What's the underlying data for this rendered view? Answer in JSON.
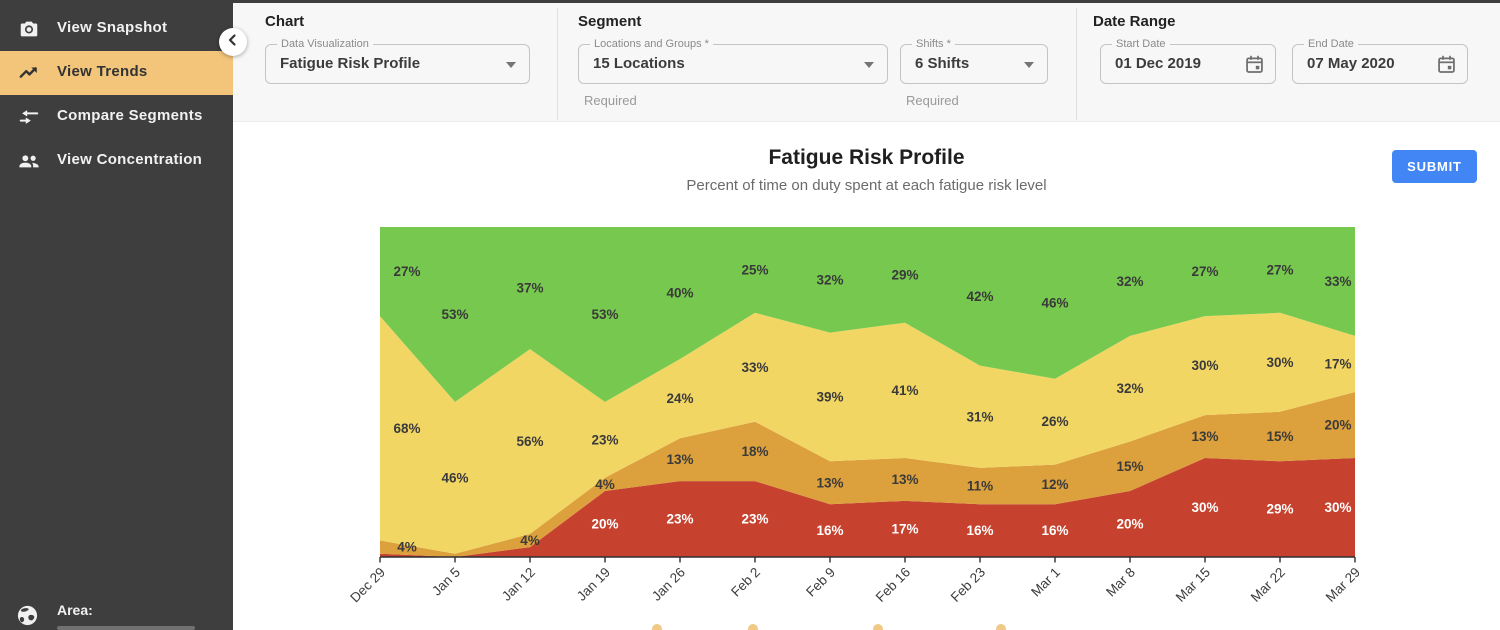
{
  "sidebar": {
    "items": [
      {
        "label": "View Snapshot",
        "icon": "camera-icon",
        "active": false
      },
      {
        "label": "View Trends",
        "icon": "trending-up-icon",
        "active": true
      },
      {
        "label": "Compare Segments",
        "icon": "compare-arrows-icon",
        "active": false
      },
      {
        "label": "View Concentration",
        "icon": "people-icon",
        "active": false
      }
    ],
    "footer_label": "Area:",
    "active_bg": "#F2C57B",
    "bg": "#3E3E3E"
  },
  "toolbar": {
    "chart_section": {
      "heading": "Chart",
      "field": {
        "label": "Data Visualization",
        "value": "Fatigue Risk Profile"
      }
    },
    "segment_section": {
      "heading": "Segment",
      "fields": [
        {
          "label": "Locations and Groups *",
          "value": "15 Locations",
          "helper": "Required"
        },
        {
          "label": "Shifts *",
          "value": "6 Shifts",
          "helper": "Required"
        }
      ]
    },
    "date_section": {
      "heading": "Date Range",
      "fields": [
        {
          "label": "Start Date",
          "value": "01 Dec 2019"
        },
        {
          "label": "End Date",
          "value": "07 May 2020"
        }
      ]
    }
  },
  "main": {
    "title": "Fatigue Risk Profile",
    "subtitle": "Percent of time on duty spent at each fatigue risk level",
    "submit_label": "SUBMIT",
    "submit_color": "#4285F4"
  },
  "chart_data": {
    "type": "area",
    "stacked": true,
    "title": "Fatigue Risk Profile",
    "subtitle": "Percent of time on duty spent at each fatigue risk level",
    "ylim": [
      0,
      100
    ],
    "grid": false,
    "legend_position": "none",
    "x": [
      "Dec 29",
      "Jan 5",
      "Jan 12",
      "Jan 19",
      "Jan 26",
      "Feb 2",
      "Feb 9",
      "Feb 16",
      "Feb 23",
      "Mar 1",
      "Mar 8",
      "Mar 15",
      "Mar 22",
      "Mar 29"
    ],
    "series": [
      {
        "name": "very-high-risk",
        "color": "#C6422F",
        "label_color": "#FFFFFF",
        "values": [
          1,
          0,
          3,
          20,
          23,
          23,
          16,
          17,
          16,
          16,
          20,
          30,
          29,
          30
        ],
        "labels": [
          null,
          null,
          null,
          "20%",
          "23%",
          "23%",
          "16%",
          "17%",
          "16%",
          "16%",
          "20%",
          "30%",
          "29%",
          "30%"
        ]
      },
      {
        "name": "high-risk",
        "color": "#DCA03C",
        "label_color": "#3A3A3A",
        "values": [
          4,
          1,
          4,
          4,
          13,
          18,
          13,
          13,
          11,
          12,
          15,
          13,
          15,
          20
        ],
        "labels": [
          "4%",
          null,
          "4%",
          "4%",
          "13%",
          "18%",
          "13%",
          "13%",
          "11%",
          "12%",
          "15%",
          "13%",
          "15%",
          "20%"
        ]
      },
      {
        "name": "moderate-risk",
        "color": "#F2D664",
        "label_color": "#3A3A3A",
        "values": [
          68,
          46,
          56,
          23,
          24,
          33,
          39,
          41,
          31,
          26,
          32,
          30,
          30,
          17
        ],
        "labels": [
          "68%",
          "46%",
          "56%",
          "23%",
          "24%",
          "33%",
          "39%",
          "41%",
          "31%",
          "26%",
          "32%",
          "30%",
          "30%",
          "17%"
        ]
      },
      {
        "name": "low-risk",
        "color": "#76C84E",
        "label_color": "#3A3A3A",
        "values": [
          27,
          53,
          37,
          53,
          40,
          25,
          32,
          29,
          42,
          46,
          32,
          27,
          27,
          33
        ],
        "labels": [
          "27%",
          "53%",
          "37%",
          "53%",
          "40%",
          "25%",
          "32%",
          "29%",
          "42%",
          "46%",
          "32%",
          "27%",
          "27%",
          "33%"
        ]
      }
    ]
  }
}
